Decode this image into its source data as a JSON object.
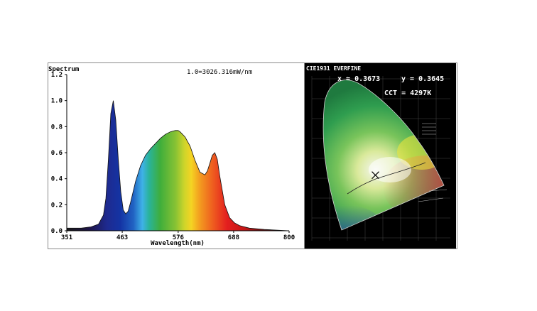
{
  "colors": {
    "background": "#ffffff",
    "frame": "#8a8a8a",
    "cie_background": "#000000",
    "blue_peak": "#1433a3",
    "green": "#58b82e",
    "yellow": "#f4d423",
    "red": "#e41f1f"
  },
  "chart_data": [
    {
      "type": "area",
      "title": "Spectrum",
      "annotation": "1.0=3026.316mW/nm",
      "xlabel": "Wavelength(nm)",
      "ylabel": "",
      "xlim": [
        351,
        800
      ],
      "ylim": [
        0,
        1.2
      ],
      "x_ticks": [
        "351",
        "463",
        "576",
        "688",
        "800"
      ],
      "y_ticks": [
        "0.0",
        "0.2",
        "0.4",
        "0.6",
        "0.8",
        "1.0",
        "1.2"
      ],
      "grid": false,
      "fill": "visible-spectrum colors under the curve",
      "x": [
        351,
        380,
        400,
        415,
        425,
        430,
        435,
        440,
        445,
        450,
        455,
        460,
        465,
        470,
        475,
        480,
        490,
        500,
        510,
        520,
        530,
        540,
        550,
        560,
        570,
        576,
        580,
        590,
        600,
        610,
        620,
        630,
        635,
        640,
        645,
        650,
        655,
        660,
        670,
        680,
        690,
        700,
        720,
        750,
        800
      ],
      "values": [
        0.02,
        0.02,
        0.03,
        0.05,
        0.12,
        0.25,
        0.55,
        0.9,
        1.0,
        0.85,
        0.55,
        0.3,
        0.16,
        0.13,
        0.15,
        0.22,
        0.38,
        0.5,
        0.58,
        0.63,
        0.67,
        0.71,
        0.74,
        0.76,
        0.77,
        0.77,
        0.76,
        0.72,
        0.65,
        0.54,
        0.45,
        0.43,
        0.46,
        0.52,
        0.58,
        0.6,
        0.55,
        0.42,
        0.2,
        0.1,
        0.06,
        0.04,
        0.02,
        0.01,
        0.0
      ]
    },
    {
      "type": "scatter",
      "title": "CIE1931 EVERFINE",
      "x": [
        0.3673
      ],
      "y": [
        0.3645
      ],
      "readout_x": "x = 0.3673",
      "readout_y": "y = 0.3645",
      "cct": "CCT = 4297K",
      "xlim": [
        0,
        0.8
      ],
      "ylim": [
        0,
        0.9
      ]
    }
  ]
}
